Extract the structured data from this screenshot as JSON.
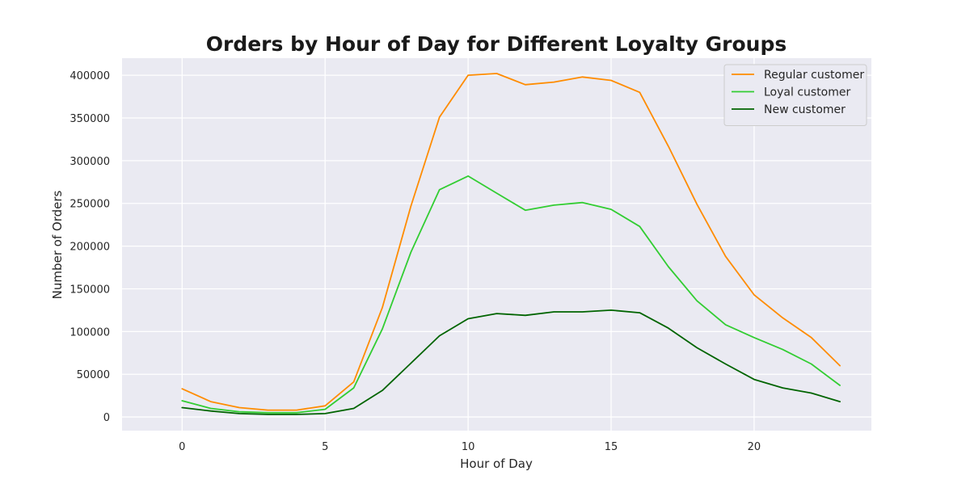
{
  "chart_data": {
    "type": "line",
    "title": "Orders by Hour of Day for Different Loyalty Groups",
    "xlabel": "Hour of Day",
    "ylabel": "Number of Orders",
    "xlim": [
      -2.1,
      24.1
    ],
    "ylim": [
      -16000,
      420000
    ],
    "xticks": [
      0,
      5,
      10,
      15,
      20
    ],
    "yticks": [
      0,
      50000,
      100000,
      150000,
      200000,
      250000,
      300000,
      350000,
      400000
    ],
    "grid": true,
    "legend_position": "top-right",
    "x": [
      0,
      1,
      2,
      3,
      4,
      5,
      6,
      7,
      8,
      9,
      10,
      11,
      12,
      13,
      14,
      15,
      16,
      17,
      18,
      19,
      20,
      21,
      22,
      23
    ],
    "series": [
      {
        "name": "Regular customer",
        "color": "#ff8c00",
        "values": [
          33000,
          18000,
          11000,
          8000,
          8000,
          13000,
          41000,
          128000,
          247000,
          351000,
          400000,
          402000,
          389000,
          392000,
          398000,
          394000,
          380000,
          317000,
          249000,
          188000,
          143000,
          116000,
          93000,
          60000
        ]
      },
      {
        "name": "Loyal customer",
        "color": "#32cd32",
        "values": [
          19000,
          10000,
          6000,
          5000,
          5000,
          9000,
          34000,
          103000,
          193000,
          266000,
          282000,
          262000,
          242000,
          248000,
          251000,
          243000,
          223000,
          176000,
          136000,
          108000,
          93000,
          79000,
          62000,
          37000
        ]
      },
      {
        "name": "New customer",
        "color": "#006400",
        "values": [
          11000,
          7000,
          4000,
          3000,
          3000,
          4000,
          10000,
          31000,
          63000,
          95000,
          115000,
          121000,
          119000,
          123000,
          123000,
          125000,
          122000,
          104000,
          81000,
          62000,
          44000,
          34000,
          28000,
          18000
        ]
      }
    ]
  }
}
